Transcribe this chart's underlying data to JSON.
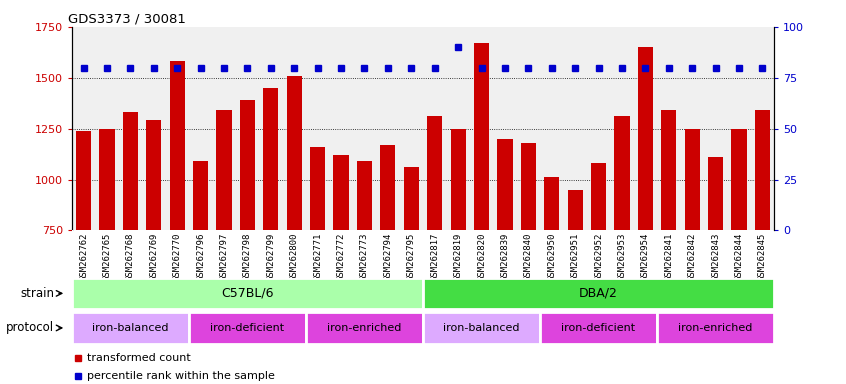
{
  "title": "GDS3373 / 30081",
  "samples": [
    "GSM262762",
    "GSM262765",
    "GSM262768",
    "GSM262769",
    "GSM262770",
    "GSM262796",
    "GSM262797",
    "GSM262798",
    "GSM262799",
    "GSM262800",
    "GSM262771",
    "GSM262772",
    "GSM262773",
    "GSM262794",
    "GSM262795",
    "GSM262817",
    "GSM262819",
    "GSM262820",
    "GSM262839",
    "GSM262840",
    "GSM262950",
    "GSM262951",
    "GSM262952",
    "GSM262953",
    "GSM262954",
    "GSM262841",
    "GSM262842",
    "GSM262843",
    "GSM262844",
    "GSM262845"
  ],
  "bar_values": [
    1240,
    1250,
    1330,
    1290,
    1580,
    1090,
    1340,
    1390,
    1450,
    1510,
    1160,
    1120,
    1090,
    1170,
    1060,
    1310,
    1250,
    1670,
    1200,
    1180,
    1010,
    950,
    1080,
    1310,
    1650,
    1340,
    1250,
    1110,
    1250,
    1340
  ],
  "percentile_values": [
    80,
    80,
    80,
    80,
    80,
    80,
    80,
    80,
    80,
    80,
    80,
    80,
    80,
    80,
    80,
    80,
    90,
    80,
    80,
    80,
    80,
    80,
    80,
    80,
    80,
    80,
    80,
    80,
    80,
    80
  ],
  "bar_color": "#cc0000",
  "dot_color": "#0000cc",
  "ylim_left": [
    750,
    1750
  ],
  "ylim_right": [
    0,
    100
  ],
  "yticks_left": [
    750,
    1000,
    1250,
    1500,
    1750
  ],
  "yticks_right": [
    0,
    25,
    50,
    75,
    100
  ],
  "grid_values": [
    1000,
    1250,
    1500
  ],
  "strain_groups": [
    {
      "label": "C57BL/6",
      "start": 0,
      "end": 15,
      "color": "#aaffaa"
    },
    {
      "label": "DBA/2",
      "start": 15,
      "end": 30,
      "color": "#44dd44"
    }
  ],
  "protocol_groups": [
    {
      "label": "iron-balanced",
      "start": 0,
      "end": 5,
      "color": "#ddaaff"
    },
    {
      "label": "iron-deficient",
      "start": 5,
      "end": 10,
      "color": "#dd44dd"
    },
    {
      "label": "iron-enriched",
      "start": 10,
      "end": 15,
      "color": "#dd44dd"
    },
    {
      "label": "iron-balanced",
      "start": 15,
      "end": 20,
      "color": "#ddaaff"
    },
    {
      "label": "iron-deficient",
      "start": 20,
      "end": 25,
      "color": "#dd44dd"
    },
    {
      "label": "iron-enriched",
      "start": 25,
      "end": 30,
      "color": "#dd44dd"
    }
  ],
  "legend_items": [
    {
      "label": "transformed count",
      "color": "#cc0000"
    },
    {
      "label": "percentile rank within the sample",
      "color": "#0000cc"
    }
  ],
  "strain_label": "strain",
  "protocol_label": "protocol",
  "plot_bg_color": "#f0f0f0",
  "xlabel_bg_color": "#d0d0d0"
}
